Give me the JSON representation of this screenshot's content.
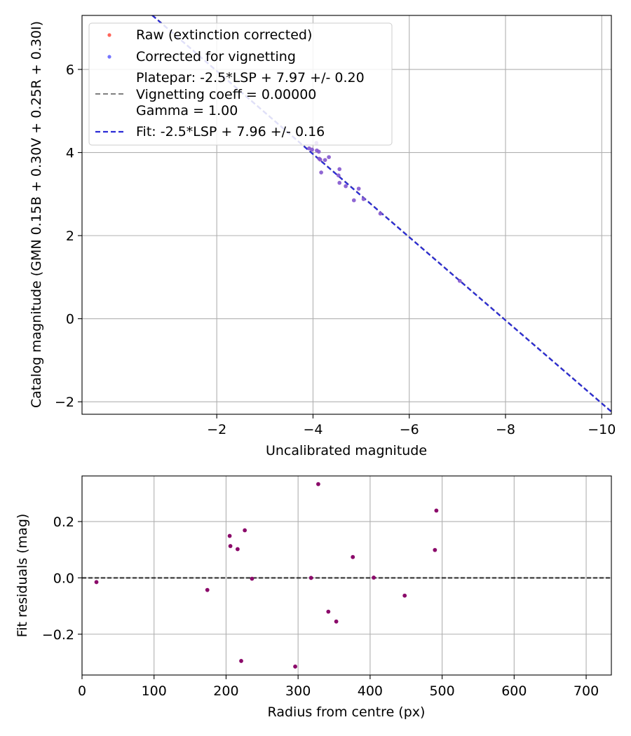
{
  "chart_data": [
    {
      "type": "scatter",
      "xlabel": "Uncalibrated magnitude",
      "ylabel": "Catalog magnitude (GMN 0.15B + 0.30V + 0.25R + 0.30I)",
      "xlim": [
        0.8,
        -10.2
      ],
      "ylim": [
        7.3,
        -2.3
      ],
      "x_ticks": [
        -2,
        -4,
        -6,
        -8,
        -10
      ],
      "x_tick_labels": [
        "−2",
        "−4",
        "−6",
        "−8",
        "−10"
      ],
      "y_ticks": [
        -2,
        0,
        2,
        4,
        6
      ],
      "y_tick_labels": [
        "−2",
        "0",
        "2",
        "4",
        "6"
      ],
      "grid": true,
      "legend_location": "top-left",
      "legend": {
        "raw": "Raw (extinction corrected)",
        "corrected": "Corrected for vignetting",
        "platepar_lines": [
          "Platepar: -2.5*LSP + 7.97 +/- 0.20",
          "Vignetting coeff = 0.00000",
          "Gamma = 1.00"
        ],
        "fit": "Fit: -2.5*LSP + 7.96 +/- 0.16"
      },
      "colors": {
        "raw": "#ff4a3d",
        "corrected": "#5d5dff",
        "overlap": "#6a1fb3",
        "platepar_line": "#808080",
        "fit_line": "#2b2bd6"
      },
      "lines": {
        "platepar": {
          "slope": 1,
          "intercept": 7.97
        },
        "fit": {
          "slope": 1,
          "intercept": 7.96
        }
      },
      "series": [
        {
          "name": "stars",
          "points": [
            [
              -7.05,
              0.91
            ],
            [
              -5.4,
              2.53
            ],
            [
              -5.05,
              2.88
            ],
            [
              -4.85,
              2.85
            ],
            [
              -4.95,
              3.13
            ],
            [
              -4.68,
              3.19
            ],
            [
              -4.55,
              3.27
            ],
            [
              -4.55,
              3.6
            ],
            [
              -4.53,
              3.45
            ],
            [
              -4.17,
              3.52
            ],
            [
              -4.25,
              3.82
            ],
            [
              -4.15,
              3.83
            ],
            [
              -4.13,
              3.85
            ],
            [
              -4.33,
              3.89
            ],
            [
              -4.12,
              4.02
            ],
            [
              -4.08,
              4.05
            ],
            [
              -3.98,
              4.07
            ],
            [
              -3.92,
              4.1
            ],
            [
              -4.07,
              4.23
            ]
          ]
        }
      ]
    },
    {
      "type": "scatter",
      "xlabel": "Radius from centre (px)",
      "ylabel": "Fit residuals (mag)",
      "xlim": [
        0,
        735
      ],
      "ylim": [
        -0.345,
        0.362
      ],
      "x_ticks": [
        0,
        100,
        200,
        300,
        400,
        500,
        600,
        700
      ],
      "x_tick_labels": [
        "0",
        "100",
        "200",
        "300",
        "400",
        "500",
        "600",
        "700"
      ],
      "y_ticks": [
        0.2,
        0.0,
        -0.2
      ],
      "y_tick_labels": [
        "0.2",
        "0.0",
        "−0.2"
      ],
      "grid": true,
      "colors": {
        "points": "#8b0a6a",
        "zero_line": "#333333"
      },
      "reference_line": {
        "y": 0.0
      },
      "series": [
        {
          "name": "residuals",
          "points": [
            [
              20,
              -0.015
            ],
            [
              174,
              -0.043
            ],
            [
              205,
              0.149
            ],
            [
              206,
              0.113
            ],
            [
              216,
              0.102
            ],
            [
              221,
              -0.295
            ],
            [
              226,
              0.169
            ],
            [
              236,
              -0.003
            ],
            [
              296,
              -0.315
            ],
            [
              318,
              0.0
            ],
            [
              328,
              0.333
            ],
            [
              342,
              -0.12
            ],
            [
              353,
              -0.155
            ],
            [
              376,
              0.074
            ],
            [
              405,
              0.001
            ],
            [
              448,
              -0.063
            ],
            [
              490,
              0.099
            ],
            [
              492,
              0.239
            ]
          ]
        }
      ]
    }
  ]
}
